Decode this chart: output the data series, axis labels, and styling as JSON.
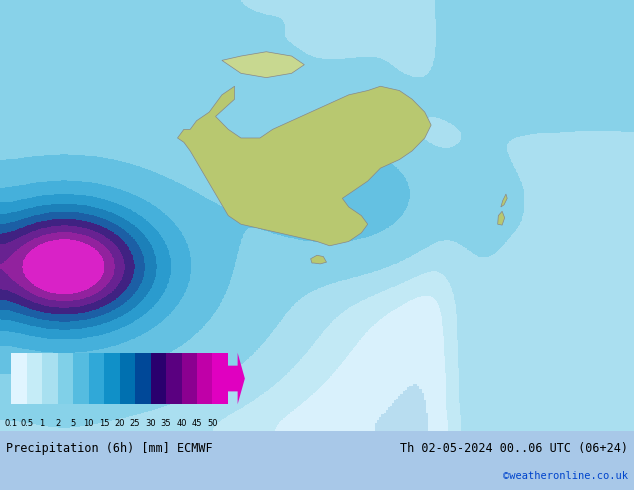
{
  "title_left": "Precipitation (6h) [mm] ECMWF",
  "title_right": "Th 02-05-2024 00..06 UTC (06+24)",
  "credit": "©weatheronline.co.uk",
  "colorbar_levels": [
    0.1,
    0.5,
    1,
    2,
    5,
    10,
    15,
    20,
    25,
    30,
    35,
    40,
    45,
    50
  ],
  "colorbar_colors": [
    "#e0f5ff",
    "#c5ecf7",
    "#a8e0f0",
    "#80d0e8",
    "#55bce0",
    "#30a8d8",
    "#1090c8",
    "#0070b0",
    "#004898",
    "#2a006e",
    "#5a0080",
    "#8b0090",
    "#c000a8",
    "#e000c0"
  ],
  "background_color": "#b0d8f0",
  "map_bg": "#c8e8f8",
  "fig_width": 6.34,
  "fig_height": 4.9,
  "dpi": 100
}
